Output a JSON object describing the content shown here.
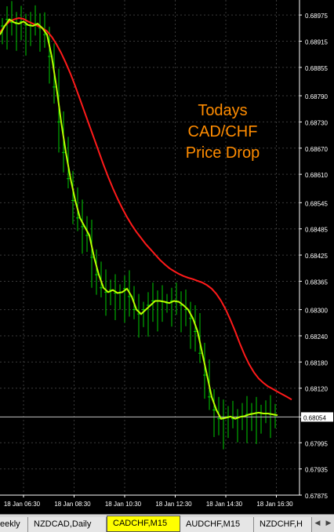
{
  "annotation": {
    "lines": [
      "Todays",
      "CAD/CHF",
      "Price Drop"
    ],
    "color": "#ff8c00"
  },
  "current_price": "0.68054",
  "colors": {
    "background": "#000000",
    "grid": "#3a3a3a",
    "candles": "#00cc00",
    "fast_ma": "#b8ff00",
    "slow_ma": "#ff1a1a",
    "axis_text": "#ffffff",
    "active_tab": "#ffff00"
  },
  "tabs": [
    {
      "label": "eekly",
      "active": false
    },
    {
      "label": "NZDCAD,Daily",
      "active": false
    },
    {
      "label": "CADCHF,M15",
      "active": true
    },
    {
      "label": "AUDCHF,M15",
      "active": false
    },
    {
      "label": "NZDCHF,H",
      "active": false
    }
  ],
  "nav_icons": [
    "scroll-left-icon",
    "scroll-right-icon"
  ],
  "chart_data": {
    "type": "line",
    "symbol": "CADCHF,M15",
    "y_ticks": [
      "0.68975",
      "0.68915",
      "0.68855",
      "0.68790",
      "0.68730",
      "0.68670",
      "0.68610",
      "0.68545",
      "0.68485",
      "0.68425",
      "0.68365",
      "0.68300",
      "0.68240",
      "0.68180",
      "0.68120",
      "0.68054",
      "0.67995",
      "0.67935",
      "0.67875"
    ],
    "x_ticks": [
      "18 Jan 06:30",
      "18 Jan 08:30",
      "18 Jan 10:30",
      "18 Jan 12:30",
      "18 Jan 14:30",
      "18 Jan 16:30"
    ],
    "ylim": [
      0.67875,
      0.68995
    ],
    "grid": true,
    "series": [
      {
        "values": [
          0.68935,
          0.6895,
          0.6896,
          0.68965,
          0.68968,
          0.68966,
          0.6896,
          0.68955,
          0.6895,
          0.68945,
          0.68938,
          0.68925,
          0.68908,
          0.68888,
          0.68865,
          0.6884,
          0.68812,
          0.68782,
          0.68752,
          0.68722,
          0.68692,
          0.68662,
          0.68632,
          0.68604,
          0.68578,
          0.68554,
          0.68532,
          0.68512,
          0.68494,
          0.68478,
          0.68464,
          0.6845,
          0.68438,
          0.68426,
          0.68414,
          0.68404,
          0.68395,
          0.68388,
          0.68382,
          0.68377,
          0.68373,
          0.6837,
          0.68366,
          0.68362,
          0.68356,
          0.68348,
          0.68336,
          0.6832,
          0.683,
          0.68276,
          0.6825,
          0.68222,
          0.68196,
          0.68174,
          0.68156,
          0.68142,
          0.68132,
          0.68124,
          0.68118,
          0.68112,
          0.68106,
          0.681,
          0.68094
        ]
      },
      {
        "values": [
          0.6893,
          0.6895,
          0.68965,
          0.68958,
          0.68955,
          0.6896,
          0.68952,
          0.6895,
          0.68955,
          0.68945,
          0.6893,
          0.6888,
          0.6881,
          0.6873,
          0.6866,
          0.686,
          0.6855,
          0.6851,
          0.6849,
          0.6847,
          0.6842,
          0.6838,
          0.6835,
          0.6834,
          0.68345,
          0.68338,
          0.6834,
          0.68348,
          0.6833,
          0.683,
          0.6829,
          0.683,
          0.6831,
          0.6832,
          0.6832,
          0.68318,
          0.68315,
          0.6832,
          0.68318,
          0.6831,
          0.683,
          0.6828,
          0.6825,
          0.682,
          0.6815,
          0.681,
          0.6807,
          0.6805,
          0.68052,
          0.68055,
          0.6805,
          0.68054,
          0.68056,
          0.6806,
          0.68062,
          0.68064,
          0.68062,
          0.68062,
          0.6806,
          0.68058
        ]
      }
    ]
  }
}
